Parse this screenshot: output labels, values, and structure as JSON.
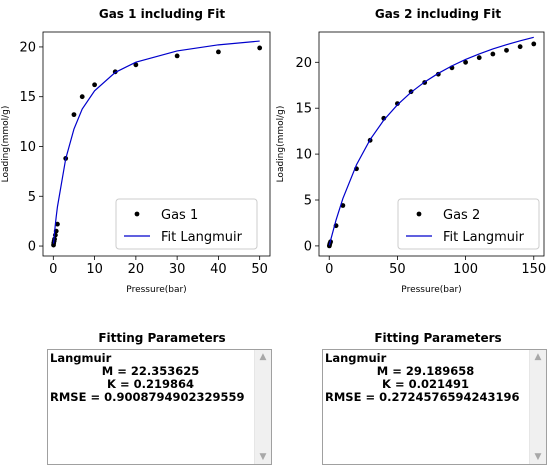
{
  "chart_data": [
    {
      "type": "scatter",
      "title": "Gas 1 including Fit",
      "xlabel": "Pressure(bar)",
      "ylabel": "Loading(mmol/g)",
      "xlim": [
        -2.5,
        52.5
      ],
      "ylim": [
        -1,
        21.5
      ],
      "xticks": [
        0,
        10,
        20,
        30,
        40,
        50
      ],
      "yticks": [
        0,
        5,
        10,
        15,
        20
      ],
      "grid": false,
      "legend_position": "bottom-right",
      "series": [
        {
          "name": "Gas 1",
          "kind": "points",
          "color": "#000000",
          "x": [
            0.05,
            0.1,
            0.2,
            0.3,
            0.5,
            0.7,
            1.0,
            3.0,
            5.0,
            7.0,
            10.0,
            15.0,
            20.0,
            30.0,
            40.0,
            50.0
          ],
          "y": [
            0.1,
            0.3,
            0.5,
            0.7,
            1.1,
            1.5,
            2.2,
            8.8,
            13.2,
            15.0,
            16.2,
            17.5,
            18.2,
            19.1,
            19.5,
            19.9
          ]
        },
        {
          "name": "Fit Langmuir",
          "kind": "line",
          "color": "#0000cc",
          "x": [
            0.05,
            0.1,
            0.2,
            0.3,
            0.5,
            0.7,
            1.0,
            3.0,
            5.0,
            7.0,
            10.0,
            15.0,
            20.0,
            30.0,
            40.0,
            50.0
          ],
          "y": [
            0.25,
            0.49,
            0.95,
            1.38,
            2.2,
            2.95,
            3.95,
            8.76,
            11.75,
            13.76,
            15.6,
            17.44,
            18.47,
            19.6,
            20.21,
            20.59
          ]
        }
      ]
    },
    {
      "type": "scatter",
      "title": "Gas 2 including Fit",
      "xlabel": "Pressure(bar)",
      "ylabel": "Loading(mmol/g)",
      "xlim": [
        -7.5,
        157.5
      ],
      "ylim": [
        -1.1,
        23.3
      ],
      "xticks": [
        0,
        50,
        100,
        150
      ],
      "yticks": [
        0,
        5,
        10,
        15,
        20
      ],
      "grid": false,
      "legend_position": "bottom-right",
      "series": [
        {
          "name": "Gas 2",
          "kind": "points",
          "color": "#000000",
          "x": [
            0.1,
            0.3,
            0.6,
            1.0,
            5.0,
            10.0,
            20.0,
            30.0,
            40.0,
            50.0,
            60.0,
            70.0,
            80.0,
            90.0,
            100.0,
            110.0,
            120.0,
            130.0,
            140.0,
            150.0
          ],
          "y": [
            0.0,
            0.15,
            0.3,
            0.45,
            2.2,
            4.4,
            8.4,
            11.5,
            13.9,
            15.5,
            16.8,
            17.8,
            18.7,
            19.4,
            20.0,
            20.5,
            20.9,
            21.3,
            21.7,
            22.0
          ]
        },
        {
          "name": "Fit Langmuir",
          "kind": "line",
          "color": "#0000cc",
          "x": [
            0.1,
            0.3,
            0.6,
            1.0,
            5.0,
            10.0,
            20.0,
            30.0,
            40.0,
            50.0,
            60.0,
            70.0,
            80.0,
            90.0,
            100.0,
            110.0,
            120.0,
            130.0,
            140.0,
            150.0
          ],
          "y": [
            0.06,
            0.19,
            0.37,
            0.61,
            2.82,
            5.16,
            8.84,
            11.58,
            13.7,
            15.37,
            16.73,
            17.86,
            18.8,
            19.61,
            20.31,
            20.91,
            21.45,
            21.92,
            22.34,
            22.72
          ]
        }
      ]
    }
  ],
  "panels": [
    {
      "title": "Fitting Parameters",
      "model": "Langmuir",
      "m_line": "M = 22.353625",
      "k_line": "K = 0.219864",
      "rmse_line": "RMSE = 0.9008794902329559"
    },
    {
      "title": "Fitting Parameters",
      "model": "Langmuir",
      "m_line": "M = 29.189658",
      "k_line": "K = 0.021491",
      "rmse_line": "RMSE = 0.2724576594243196"
    }
  ],
  "icons": {
    "scroll_up": "scroll-up-arrow-icon",
    "scroll_down": "scroll-down-arrow-icon"
  }
}
